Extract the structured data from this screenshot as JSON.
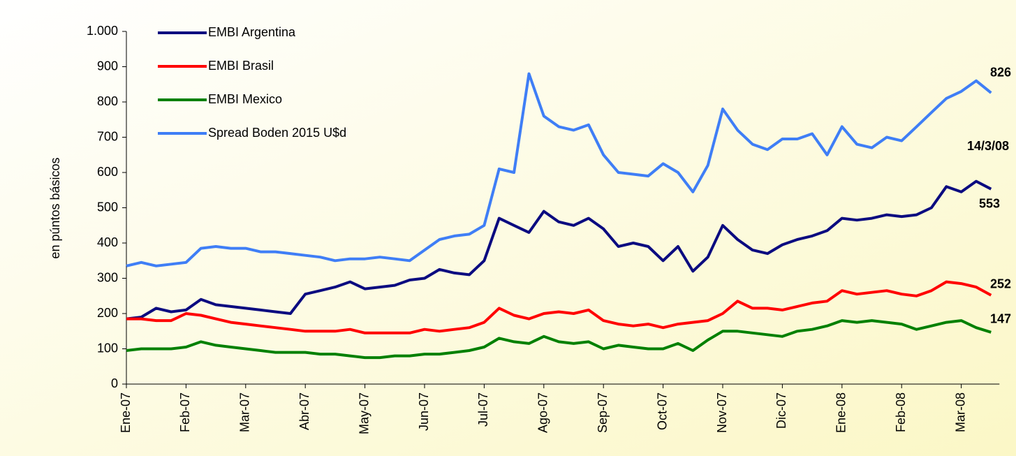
{
  "chart_data": {
    "type": "line",
    "y_label": "en púntos básicos",
    "annotation": "14/3/08",
    "categories": [
      "Ene-07",
      null,
      null,
      null,
      "Feb-07",
      null,
      null,
      null,
      "Mar-07",
      null,
      null,
      null,
      "Abr-07",
      null,
      null,
      null,
      "May-07",
      null,
      null,
      null,
      "Jun-07",
      null,
      null,
      null,
      "Jul-07",
      null,
      null,
      null,
      "Ago-07",
      null,
      null,
      null,
      "Sep-07",
      null,
      null,
      null,
      "Oct-07",
      null,
      null,
      null,
      "Nov-07",
      null,
      null,
      null,
      "Dic-07",
      null,
      null,
      null,
      "Ene-08",
      null,
      null,
      null,
      "Feb-08",
      null,
      null,
      null,
      "Mar-08",
      null,
      null
    ],
    "series": [
      {
        "name": "EMBI Argentina",
        "color": "#0b0b80",
        "values": [
          185,
          190,
          215,
          205,
          210,
          240,
          225,
          220,
          215,
          210,
          205,
          200,
          255,
          265,
          275,
          290,
          270,
          275,
          280,
          295,
          300,
          325,
          315,
          310,
          350,
          470,
          450,
          430,
          490,
          460,
          450,
          470,
          440,
          390,
          400,
          390,
          350,
          390,
          320,
          360,
          450,
          410,
          380,
          370,
          395,
          410,
          420,
          435,
          470,
          465,
          470,
          480,
          475,
          480,
          500,
          560,
          545,
          575,
          553
        ]
      },
      {
        "name": "EMBI Brasil",
        "color": "#ff0000",
        "values": [
          185,
          185,
          180,
          180,
          200,
          195,
          185,
          175,
          170,
          165,
          160,
          155,
          150,
          150,
          150,
          155,
          145,
          145,
          145,
          145,
          155,
          150,
          155,
          160,
          175,
          215,
          195,
          185,
          200,
          205,
          200,
          210,
          180,
          170,
          165,
          170,
          160,
          170,
          175,
          180,
          200,
          235,
          215,
          215,
          210,
          220,
          230,
          235,
          265,
          255,
          260,
          265,
          255,
          250,
          265,
          290,
          285,
          275,
          252
        ]
      },
      {
        "name": "EMBI Mexico",
        "color": "#008000",
        "values": [
          95,
          100,
          100,
          100,
          105,
          120,
          110,
          105,
          100,
          95,
          90,
          90,
          90,
          85,
          85,
          80,
          75,
          75,
          80,
          80,
          85,
          85,
          90,
          95,
          105,
          130,
          120,
          115,
          135,
          120,
          115,
          120,
          100,
          110,
          105,
          100,
          100,
          115,
          95,
          125,
          150,
          150,
          145,
          140,
          135,
          150,
          155,
          165,
          180,
          175,
          180,
          175,
          170,
          155,
          165,
          175,
          180,
          160,
          147
        ]
      },
      {
        "name": "Spread Boden 2015 U$d",
        "color": "#3f7ef6",
        "values": [
          335,
          345,
          335,
          340,
          345,
          385,
          390,
          385,
          385,
          375,
          375,
          370,
          365,
          360,
          350,
          355,
          355,
          360,
          355,
          350,
          380,
          410,
          420,
          425,
          450,
          610,
          600,
          880,
          760,
          730,
          720,
          735,
          650,
          600,
          595,
          590,
          625,
          600,
          545,
          620,
          780,
          720,
          680,
          665,
          695,
          695,
          710,
          650,
          730,
          680,
          670,
          700,
          690,
          730,
          770,
          810,
          830,
          860,
          826
        ]
      }
    ],
    "ylim": [
      0,
      1000
    ],
    "yticks": [
      0,
      100,
      200,
      300,
      400,
      500,
      600,
      700,
      800,
      900,
      {
        "value": 1000,
        "label": "1.000"
      }
    ]
  }
}
